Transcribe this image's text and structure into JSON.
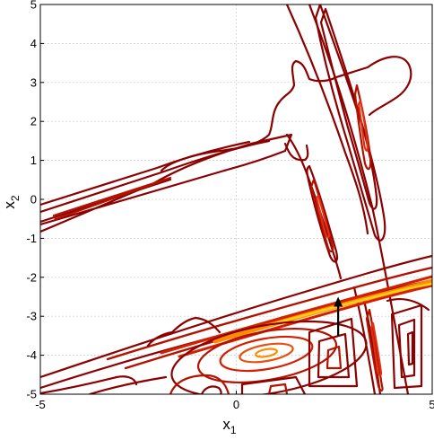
{
  "chart_data": {
    "type": "contour",
    "title": "",
    "xlabel": "x",
    "xlabel_sub": "1",
    "ylabel": "x",
    "ylabel_sub": "2",
    "xlim": [
      -5,
      5
    ],
    "ylim": [
      -5,
      5
    ],
    "xticks": [
      -5,
      0,
      5
    ],
    "yticks": [
      -5,
      -4,
      -3,
      -2,
      -1,
      0,
      1,
      2,
      3,
      4,
      5
    ],
    "grid": true,
    "colors": {
      "outer": "#8b0000",
      "mid": "#b31200",
      "inner": "#e03010",
      "core": "#ff8c00",
      "peak": "#ffd21a",
      "arrow": "#000000"
    },
    "ridges": [
      {
        "name": "upper-left ridge",
        "from": [
          -5,
          -0.5
        ],
        "to": [
          -1.5,
          1.5
        ]
      },
      {
        "name": "steep ridge",
        "from": [
          2,
          5
        ],
        "to": [
          4.6,
          -5
        ]
      },
      {
        "name": "main lower ridge",
        "from": [
          -5,
          -4.6
        ],
        "to": [
          5,
          -1.6
        ]
      }
    ],
    "local_min": [
      0.8,
      -3.9
    ],
    "arrow": {
      "from": [
        2.6,
        -3.5
      ],
      "to": [
        2.6,
        -2.5
      ]
    }
  }
}
